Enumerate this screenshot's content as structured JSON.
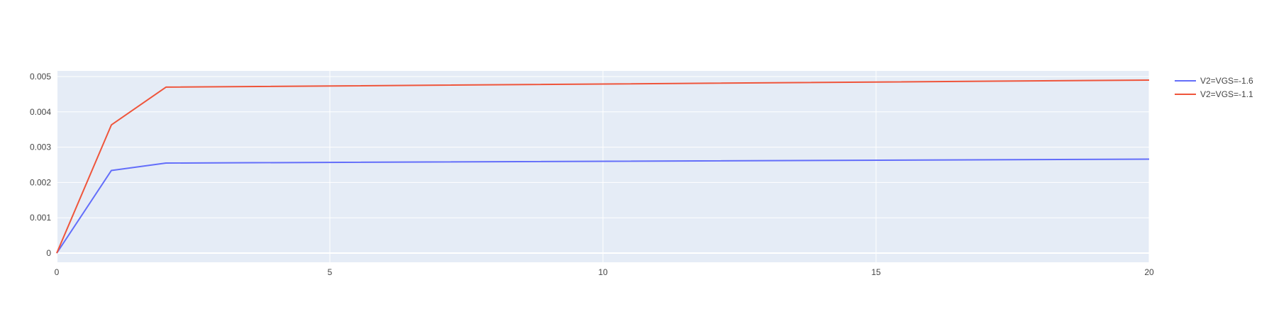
{
  "chart_data": {
    "type": "line",
    "title": "",
    "xlabel": "",
    "ylabel": "",
    "xlim": [
      0,
      20
    ],
    "ylim": [
      -0.00026,
      0.00516
    ],
    "x_ticks": [
      0,
      5,
      10,
      15,
      20
    ],
    "y_ticks": [
      0,
      0.001,
      0.002,
      0.003,
      0.004,
      0.005
    ],
    "x_tick_labels": [
      "0",
      "5",
      "10",
      "15",
      "20"
    ],
    "y_tick_labels": [
      "0",
      "0.001",
      "0.002",
      "0.003",
      "0.004",
      "0.005"
    ],
    "grid": true,
    "legend_position": "top-right, outside plot",
    "colors": {
      "plot_bg": "#E5ECF6",
      "grid": "#ffffff",
      "axis_text": "#444444"
    },
    "series": [
      {
        "name": "V2=VGS=-1.6",
        "color": "#636EFA",
        "x": [
          0,
          1,
          2,
          20
        ],
        "y": [
          0,
          0.00234,
          0.00255,
          0.00266
        ]
      },
      {
        "name": "V2=VGS=-1.1",
        "color": "#EF553B",
        "x": [
          0,
          1,
          2,
          20
        ],
        "y": [
          0,
          0.00363,
          0.0047,
          0.0049
        ]
      }
    ]
  }
}
